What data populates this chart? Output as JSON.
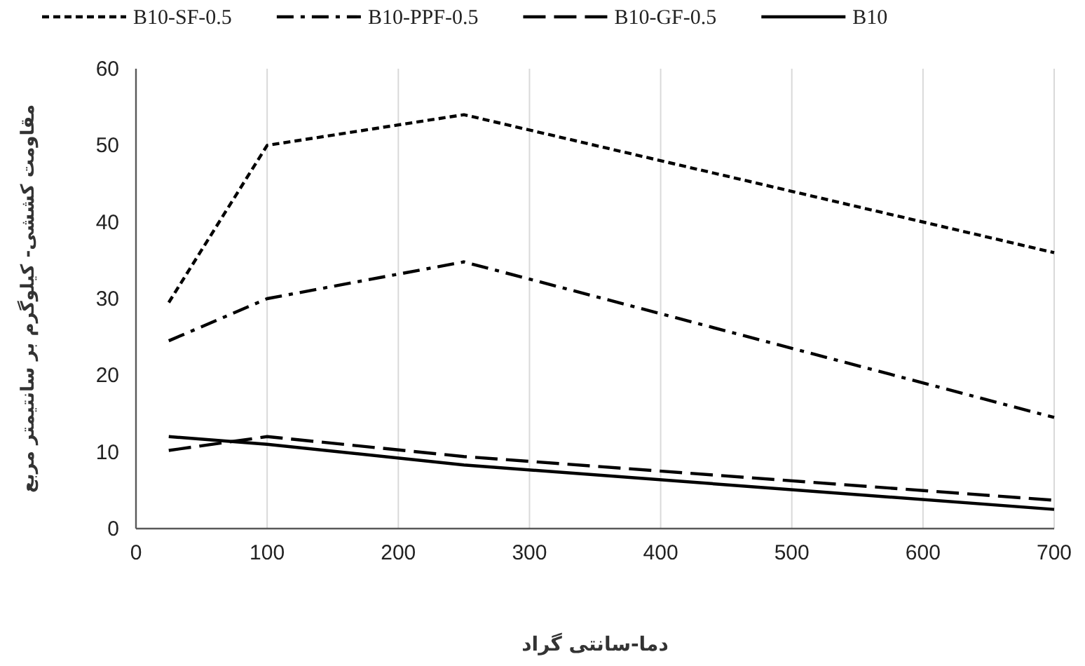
{
  "chart_data": {
    "type": "line",
    "xlabel": "دما-سانتی گراد",
    "ylabel": "مقاومت کششی- کیلوگرم بر سانتیمتر مربع",
    "x": [
      25,
      100,
      250,
      700
    ],
    "series": [
      {
        "name": "B10-SF-0.5",
        "color": "#000000",
        "line_style": "dotted",
        "values": [
          29.5,
          50,
          54,
          36
        ]
      },
      {
        "name": "B10-PPF-0.5",
        "color": "#000000",
        "line_style": "dashdot",
        "values": [
          24.5,
          30,
          34.8,
          14.5
        ]
      },
      {
        "name": "B10-GF-0.5",
        "color": "#000000",
        "line_style": "dashed",
        "values": [
          10.2,
          12,
          9.4,
          3.7
        ]
      },
      {
        "name": "B10",
        "color": "#000000",
        "line_style": "solid",
        "values": [
          12,
          11,
          8.3,
          2.5
        ]
      }
    ],
    "xlim": [
      0,
      700
    ],
    "ylim": [
      0,
      60
    ],
    "xticks": [
      0,
      100,
      200,
      300,
      400,
      500,
      600,
      700
    ],
    "yticks": [
      0,
      10,
      20,
      30,
      40,
      50,
      60
    ],
    "grid": "x",
    "legend": "top",
    "marker": "none"
  }
}
